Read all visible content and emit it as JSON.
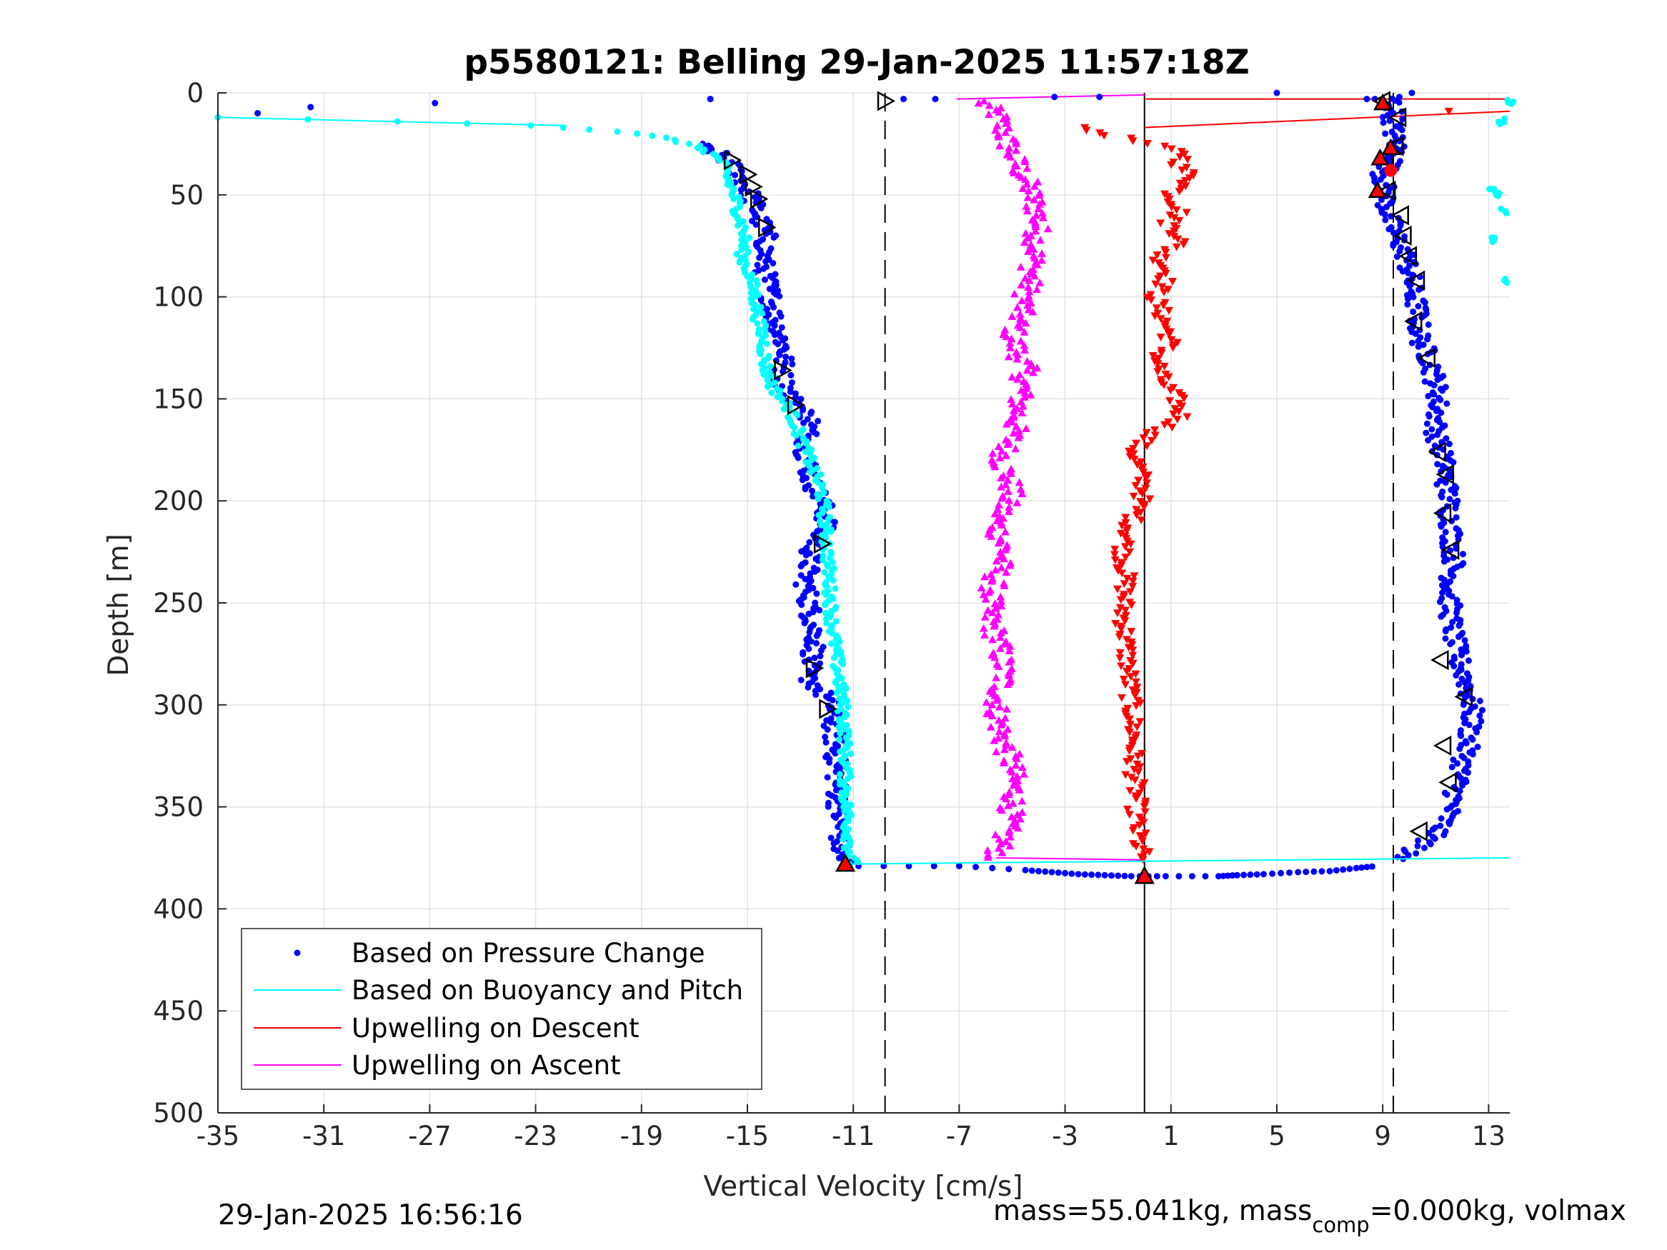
{
  "chart_data": {
    "type": "scatter",
    "title": "p5580121: Belling 29-Jan-2025 11:57:18Z",
    "xlabel": "Vertical Velocity [cm/s]",
    "ylabel": "Depth [m]",
    "xlim": [
      -35,
      13.8
    ],
    "ylim": [
      0,
      500
    ],
    "y_reversed": true,
    "grid": true,
    "x_ticks": [
      -35,
      -31,
      -27,
      -23,
      -19,
      -15,
      -11,
      -7,
      -3,
      1,
      5,
      9,
      13
    ],
    "y_ticks": [
      0,
      50,
      100,
      150,
      200,
      250,
      300,
      350,
      400,
      450,
      500
    ],
    "legend_position": "bottom-left",
    "legend": [
      {
        "label": "Based on Pressure Change",
        "color": "#0000ff",
        "style": "dot"
      },
      {
        "label": "Based on Buoyancy and Pitch",
        "color": "#00ffff",
        "style": "line"
      },
      {
        "label": "Upwelling on Descent",
        "color": "#ff0000",
        "style": "line"
      },
      {
        "label": "Upwelling on Ascent",
        "color": "#ff00ff",
        "style": "line"
      }
    ],
    "reference_lines": [
      {
        "x": -9.8,
        "style": "dashed",
        "color": "#000000"
      },
      {
        "x": 9.4,
        "style": "dashed",
        "color": "#000000"
      },
      {
        "x": 0,
        "style": "solid",
        "color": "#000000"
      }
    ],
    "series": [
      {
        "name": "Based on Pressure Change",
        "segment": "descent",
        "color": "#0000ff",
        "profile": [
          [
            -35,
            10
          ],
          [
            -32,
            8
          ],
          [
            -31.2,
            13
          ],
          [
            -27.5,
            15
          ],
          [
            -25.5,
            16
          ],
          [
            -23,
            17
          ],
          [
            -21,
            18
          ],
          [
            -19.5,
            20
          ],
          [
            -18,
            23
          ],
          [
            -17,
            25
          ],
          [
            -16.3,
            28
          ],
          [
            -15.8,
            33
          ],
          [
            -15.3,
            40
          ],
          [
            -14.9,
            50
          ],
          [
            -14.6,
            60
          ],
          [
            -14.3,
            70
          ],
          [
            -14.4,
            85
          ],
          [
            -14.1,
            100
          ],
          [
            -14.0,
            110
          ],
          [
            -13.6,
            125
          ],
          [
            -13.7,
            140
          ],
          [
            -13.3,
            150
          ],
          [
            -12.6,
            160
          ],
          [
            -12.8,
            175
          ],
          [
            -12.6,
            190
          ],
          [
            -12.2,
            200
          ],
          [
            -12.0,
            210
          ],
          [
            -12.6,
            225
          ],
          [
            -12.8,
            240
          ],
          [
            -12.6,
            255
          ],
          [
            -12.4,
            270
          ],
          [
            -12.8,
            285
          ],
          [
            -11.8,
            300
          ],
          [
            -11.7,
            320
          ],
          [
            -11.6,
            340
          ],
          [
            -11.5,
            360
          ],
          [
            -11.5,
            372
          ],
          [
            -11.3,
            378
          ]
        ]
      },
      {
        "name": "Based on Pressure Change",
        "segment": "ascent",
        "color": "#0000ff",
        "profile": [
          [
            9.0,
            40
          ],
          [
            9.4,
            20
          ],
          [
            9.6,
            30
          ],
          [
            9.2,
            60
          ],
          [
            9.5,
            70
          ],
          [
            9.9,
            80
          ],
          [
            10.1,
            95
          ],
          [
            10.3,
            105
          ],
          [
            10.4,
            120
          ],
          [
            10.9,
            135
          ],
          [
            11.1,
            150
          ],
          [
            11.0,
            165
          ],
          [
            11.3,
            180
          ],
          [
            11.5,
            200
          ],
          [
            11.6,
            215
          ],
          [
            11.7,
            230
          ],
          [
            11.5,
            245
          ],
          [
            11.6,
            260
          ],
          [
            11.8,
            275
          ],
          [
            12.2,
            290
          ],
          [
            12.4,
            305
          ],
          [
            12.2,
            320
          ],
          [
            11.9,
            335
          ],
          [
            11.6,
            350
          ],
          [
            11.2,
            360
          ],
          [
            10.6,
            368
          ],
          [
            10.0,
            372
          ],
          [
            9.5,
            376
          ]
        ]
      },
      {
        "name": "Based on Pressure Change",
        "segment": "bottom",
        "color": "#0000ff",
        "points": [
          [
            -10.8,
            379
          ],
          [
            -7,
            379
          ],
          [
            -4.5,
            381
          ],
          [
            -3.5,
            382
          ],
          [
            -2.5,
            383
          ],
          [
            -1.5,
            383.5
          ],
          [
            -0.5,
            384
          ],
          [
            0.8,
            384
          ],
          [
            2.8,
            384
          ],
          [
            3.5,
            383.5
          ],
          [
            4.5,
            383
          ],
          [
            5.8,
            382
          ],
          [
            7,
            381.5
          ],
          [
            8,
            380
          ],
          [
            8.8,
            379
          ]
        ]
      },
      {
        "name": "Based on Pressure Change",
        "segment": "scattered",
        "color": "#0000ff",
        "points": [
          [
            -33.5,
            10
          ],
          [
            -31.5,
            7
          ],
          [
            -26.8,
            5
          ],
          [
            -16.4,
            3
          ],
          [
            -9.1,
            3
          ],
          [
            -7.9,
            3
          ],
          [
            -3.4,
            2
          ],
          [
            -1.7,
            2
          ],
          [
            5.0,
            0
          ],
          [
            10.1,
            0
          ],
          [
            8.7,
            3
          ],
          [
            8.4,
            3
          ]
        ]
      },
      {
        "name": "Based on Buoyancy and Pitch",
        "segment": "descent",
        "color": "#00ffff",
        "profile": [
          [
            -35,
            12
          ],
          [
            -28,
            14
          ],
          [
            -23,
            16
          ],
          [
            -19.8,
            19
          ],
          [
            -18.2,
            22
          ],
          [
            -17.2,
            25
          ],
          [
            -16.6,
            28
          ],
          [
            -16.0,
            33
          ],
          [
            -15.8,
            40
          ],
          [
            -15.5,
            50
          ],
          [
            -15.3,
            60
          ],
          [
            -15.1,
            70
          ],
          [
            -15.2,
            80
          ],
          [
            -14.9,
            90
          ],
          [
            -14.7,
            100
          ],
          [
            -14.6,
            110
          ],
          [
            -14.4,
            120
          ],
          [
            -14.3,
            135
          ],
          [
            -14.0,
            145
          ],
          [
            -13.4,
            155
          ],
          [
            -13.1,
            165
          ],
          [
            -12.8,
            175
          ],
          [
            -12.5,
            185
          ],
          [
            -12.2,
            195
          ],
          [
            -12.1,
            205
          ],
          [
            -12.0,
            220
          ],
          [
            -11.9,
            240
          ],
          [
            -11.8,
            260
          ],
          [
            -11.6,
            280
          ],
          [
            -11.4,
            300
          ],
          [
            -11.3,
            320
          ],
          [
            -11.3,
            340
          ],
          [
            -11.2,
            360
          ],
          [
            -11.1,
            375
          ],
          [
            -11.0,
            378
          ]
        ]
      },
      {
        "name": "Based on Buoyancy and Pitch",
        "segment": "bottom-line",
        "color": "#00ffff",
        "points": [
          [
            -11.0,
            378
          ],
          [
            13.8,
            375
          ]
        ]
      },
      {
        "name": "Based on Buoyancy and Pitch",
        "segment": "ascent-edge",
        "color": "#00ffff",
        "points": [
          [
            13.8,
            4
          ],
          [
            13.5,
            14
          ],
          [
            13.1,
            47
          ],
          [
            13.3,
            50
          ],
          [
            13.6,
            58
          ],
          [
            13.2,
            72
          ],
          [
            13.6,
            92
          ]
        ]
      },
      {
        "name": "Upwelling on Descent",
        "color": "#ff0000",
        "profile": [
          [
            -2.6,
            17
          ],
          [
            -1.5,
            20
          ],
          [
            0.4,
            26
          ],
          [
            1.6,
            30
          ],
          [
            1.3,
            36
          ],
          [
            1.9,
            42
          ],
          [
            1.0,
            50
          ],
          [
            1.4,
            58
          ],
          [
            0.9,
            64
          ],
          [
            1.5,
            72
          ],
          [
            0.6,
            80
          ],
          [
            0.9,
            90
          ],
          [
            0.4,
            100
          ],
          [
            0.7,
            110
          ],
          [
            1.0,
            122
          ],
          [
            0.5,
            130
          ],
          [
            0.6,
            140
          ],
          [
            1.2,
            150
          ],
          [
            1.4,
            160
          ],
          [
            0.2,
            168
          ],
          [
            -0.4,
            175
          ],
          [
            -0.2,
            185
          ],
          [
            0.0,
            195
          ],
          [
            -0.3,
            205
          ],
          [
            -0.6,
            215
          ],
          [
            -0.8,
            225
          ],
          [
            -0.7,
            240
          ],
          [
            -0.8,
            255
          ],
          [
            -0.7,
            270
          ],
          [
            -0.6,
            285
          ],
          [
            -0.5,
            300
          ],
          [
            -0.4,
            315
          ],
          [
            -0.4,
            330
          ],
          [
            -0.3,
            345
          ],
          [
            -0.3,
            360
          ],
          [
            -0.2,
            370
          ],
          [
            0.0,
            376
          ]
        ]
      },
      {
        "name": "Upwelling on Descent",
        "segment": "surface",
        "color": "#ff0000",
        "points": [
          [
            0,
            3
          ],
          [
            13.8,
            3
          ],
          [
            0,
            17
          ],
          [
            13.8,
            9
          ],
          [
            11.5,
            9
          ]
        ]
      },
      {
        "name": "Upwelling on Ascent",
        "color": "#ff00ff",
        "profile": [
          [
            -5.6,
            375
          ],
          [
            -5.2,
            360
          ],
          [
            -4.9,
            345
          ],
          [
            -5.0,
            330
          ],
          [
            -5.4,
            315
          ],
          [
            -5.6,
            300
          ],
          [
            -5.3,
            285
          ],
          [
            -5.5,
            270
          ],
          [
            -5.9,
            255
          ],
          [
            -5.7,
            240
          ],
          [
            -5.3,
            225
          ],
          [
            -5.6,
            210
          ],
          [
            -5.0,
            195
          ],
          [
            -5.4,
            180
          ],
          [
            -4.9,
            165
          ],
          [
            -4.7,
            150
          ],
          [
            -4.5,
            135
          ],
          [
            -5.0,
            120
          ],
          [
            -4.6,
            105
          ],
          [
            -4.3,
            90
          ],
          [
            -4.1,
            75
          ],
          [
            -4.0,
            60
          ],
          [
            -4.4,
            45
          ],
          [
            -5.0,
            30
          ],
          [
            -5.3,
            20
          ],
          [
            -5.6,
            10
          ],
          [
            -6.2,
            4
          ],
          [
            -7.1,
            3
          ]
        ]
      },
      {
        "name": "Upwelling on Ascent",
        "segment": "surface",
        "color": "#ff00ff",
        "points": [
          [
            -7.1,
            3
          ],
          [
            0,
            1
          ]
        ]
      }
    ],
    "markers": {
      "descent_triangles": [
        [
          -15.6,
          33
        ],
        [
          -15.0,
          40
        ],
        [
          -14.8,
          46
        ],
        [
          -14.6,
          52
        ],
        [
          -14.3,
          66
        ],
        [
          -13.7,
          136
        ],
        [
          -13.2,
          153
        ],
        [
          -12.2,
          221
        ],
        [
          -12.5,
          282
        ],
        [
          -12.0,
          302
        ],
        [
          -9.8,
          4
        ]
      ],
      "ascent_triangles": [
        [
          9.0,
          4
        ],
        [
          9.6,
          12
        ],
        [
          9.5,
          26
        ],
        [
          9.1,
          32
        ],
        [
          9.2,
          48
        ],
        [
          9.7,
          60
        ],
        [
          9.8,
          70
        ],
        [
          10.0,
          80
        ],
        [
          10.3,
          92
        ],
        [
          10.2,
          112
        ],
        [
          10.7,
          130
        ],
        [
          11.1,
          176
        ],
        [
          11.4,
          187
        ],
        [
          11.3,
          206
        ],
        [
          11.6,
          224
        ],
        [
          11.2,
          278
        ],
        [
          12.1,
          296
        ],
        [
          11.3,
          320
        ],
        [
          11.5,
          338
        ],
        [
          10.4,
          362
        ]
      ],
      "red_triangles_descent": [
        [
          -11.3,
          378
        ],
        [
          0.0,
          384
        ]
      ],
      "red_triangles_ascent": [
        [
          9.0,
          5
        ],
        [
          9.3,
          27
        ],
        [
          8.9,
          32
        ],
        [
          8.8,
          48
        ],
        [
          9.3,
          38
        ]
      ]
    }
  },
  "footer": {
    "timestamp": "29-Jan-2025 16:56:16",
    "mass_text": "mass=55.041kg, mass",
    "mass_sub": "comp",
    "mass_tail": "=0.000kg, volmax"
  }
}
